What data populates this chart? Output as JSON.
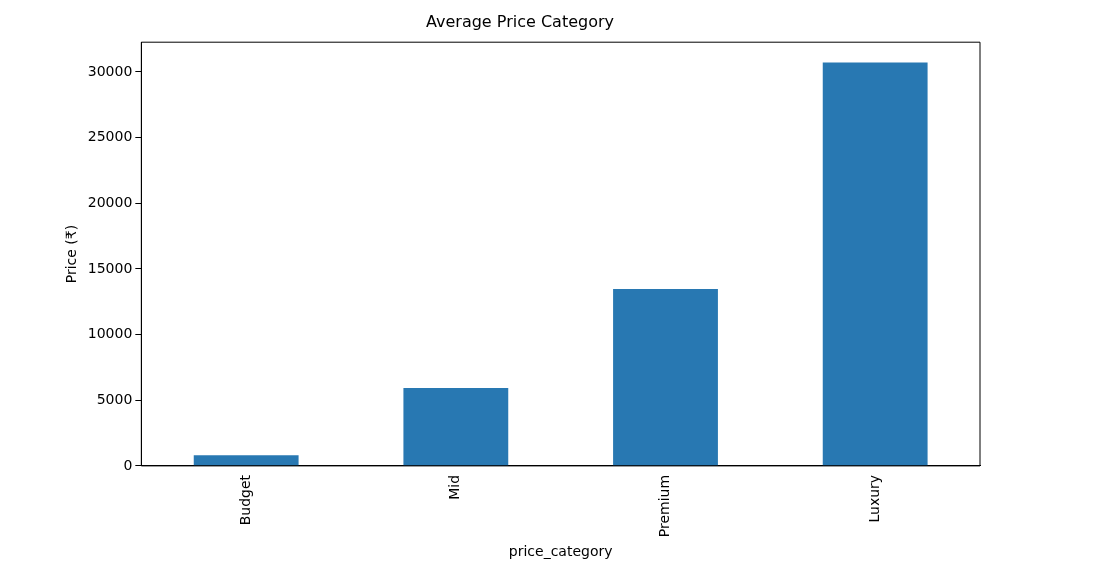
{
  "chart_data": {
    "type": "bar",
    "title": "Average Price Category",
    "xlabel": "price_category",
    "ylabel": "Price (₹)",
    "categories": [
      "Budget",
      "Mid",
      "Premium",
      "Luxury"
    ],
    "values": [
      820,
      5940,
      13460,
      30720
    ],
    "color": "#2878b2",
    "ylim": [
      0,
      32260
    ],
    "yticks": [
      0,
      5000,
      10000,
      15000,
      20000,
      25000,
      30000
    ],
    "grid": false,
    "legend": false
  }
}
